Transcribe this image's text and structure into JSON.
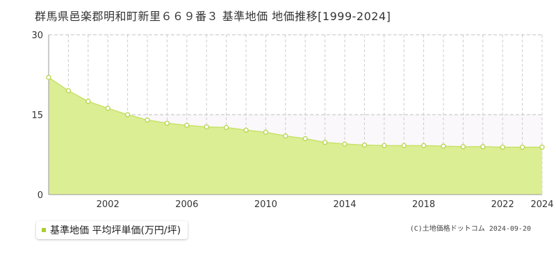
{
  "page_title": "群馬県邑楽郡明和町新里６６９番３ 基準地価 地価推移[1999-2024]",
  "legend_label": "基準地価 平均坪単価(万円/坪)",
  "copyright": "(C)土地価格ドットコム 2024-09-20",
  "colors": {
    "area_fill": "#dcee94",
    "line": "#c8e26a",
    "marker_fill": "#ffffff",
    "marker_stroke": "#b6d44a",
    "grid_dashed": "#cccccc",
    "hline_dashed": "#c0c0c0",
    "axis": "#999999",
    "legend_swatch": "#a8d030"
  },
  "chart_data": {
    "type": "area",
    "title": "群馬県邑楽郡明和町新里６６９番３ 基準地価 地価推移[1999-2024]",
    "x": [
      1999,
      2000,
      2001,
      2002,
      2003,
      2004,
      2005,
      2006,
      2007,
      2008,
      2009,
      2010,
      2011,
      2012,
      2013,
      2014,
      2015,
      2016,
      2017,
      2018,
      2019,
      2020,
      2021,
      2022,
      2023,
      2024
    ],
    "series": [
      {
        "name": "基準地価 平均坪単価(万円/坪)",
        "values": [
          22.0,
          19.5,
          17.5,
          16.2,
          15.0,
          14.0,
          13.4,
          13.0,
          12.7,
          12.6,
          12.1,
          11.7,
          11.0,
          10.5,
          9.8,
          9.5,
          9.3,
          9.2,
          9.2,
          9.2,
          9.1,
          9.0,
          9.0,
          8.9,
          8.9,
          8.9
        ]
      }
    ],
    "x_tick_labels": [
      "2002",
      "2006",
      "2010",
      "2014",
      "2018",
      "2022",
      "2024"
    ],
    "x_tick_values": [
      2002,
      2006,
      2010,
      2014,
      2018,
      2022,
      2024
    ],
    "y_ticks": [
      0,
      15,
      30
    ],
    "xlim": [
      1999,
      2024
    ],
    "ylim": [
      0,
      30
    ],
    "grid": true,
    "legend_position": "bottom-left"
  }
}
